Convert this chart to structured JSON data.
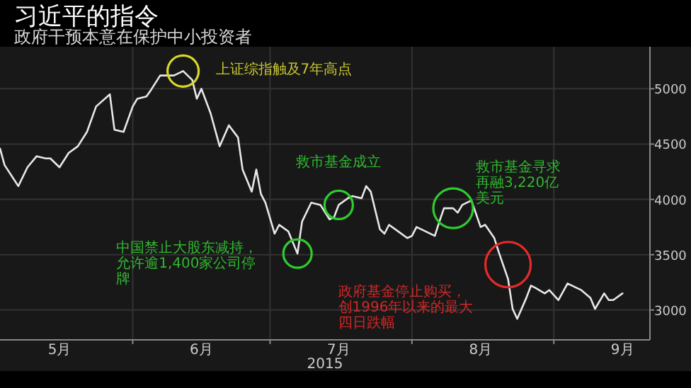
{
  "chart_data": {
    "type": "line",
    "title": "习近平的指令",
    "subtitle": "政府干预本意在保护中小投资者",
    "xlabel": "2015",
    "x": [
      "2015-05-03",
      "2015-05-04",
      "2015-05-07",
      "2015-05-09",
      "2015-05-11",
      "2015-05-13",
      "2015-05-14",
      "2015-05-16",
      "2015-05-18",
      "2015-05-20",
      "2015-05-22",
      "2015-05-24",
      "2015-05-27",
      "2015-05-28",
      "2015-05-30",
      "2015-06-01",
      "2015-06-02",
      "2015-06-04",
      "2015-06-05",
      "2015-06-07",
      "2015-06-08",
      "2015-06-10",
      "2015-06-12",
      "2015-06-14",
      "2015-06-15",
      "2015-06-16",
      "2015-06-18",
      "2015-06-20",
      "2015-06-22",
      "2015-06-24",
      "2015-06-25",
      "2015-06-27",
      "2015-06-28",
      "2015-06-29",
      "2015-06-30",
      "2015-07-02",
      "2015-07-03",
      "2015-07-05",
      "2015-07-07",
      "2015-07-08",
      "2015-07-10",
      "2015-07-12",
      "2015-07-14",
      "2015-07-15",
      "2015-07-16",
      "2015-07-18",
      "2015-07-19",
      "2015-07-21",
      "2015-07-22",
      "2015-07-23",
      "2015-07-25",
      "2015-07-26",
      "2015-07-27",
      "2015-07-29",
      "2015-07-31",
      "2015-08-01",
      "2015-08-02",
      "2015-08-04",
      "2015-08-06",
      "2015-08-07",
      "2015-08-08",
      "2015-08-10",
      "2015-08-11",
      "2015-08-12",
      "2015-08-14",
      "2015-08-16",
      "2015-08-17",
      "2015-08-19",
      "2015-08-20",
      "2015-08-22",
      "2015-08-23",
      "2015-08-24",
      "2015-08-26",
      "2015-08-27",
      "2015-08-28",
      "2015-08-30",
      "2015-08-31",
      "2015-09-02",
      "2015-09-04",
      "2015-09-06",
      "2015-09-07",
      "2015-09-09",
      "2015-09-10",
      "2015-09-12",
      "2015-09-13",
      "2015-09-14",
      "2015-09-16"
    ],
    "series": [
      {
        "color": "#e8e8e8",
        "values": [
          4460,
          4310,
          4120,
          4290,
          4390,
          4370,
          4370,
          4290,
          4420,
          4480,
          4610,
          4840,
          4950,
          4630,
          4610,
          4840,
          4910,
          4930,
          4990,
          5120,
          5120,
          5120,
          5160,
          5080,
          4910,
          5000,
          4780,
          4480,
          4670,
          4560,
          4270,
          4070,
          4270,
          4050,
          3970,
          3690,
          3770,
          3710,
          3510,
          3800,
          3970,
          3950,
          3820,
          3840,
          3950,
          4010,
          4030,
          4010,
          4120,
          4070,
          3730,
          3690,
          3770,
          3710,
          3650,
          3670,
          3750,
          3710,
          3670,
          3800,
          3920,
          3920,
          3880,
          3950,
          3990,
          3750,
          3770,
          3650,
          3520,
          3280,
          3010,
          2920,
          3110,
          3220,
          3200,
          3150,
          3180,
          3090,
          3240,
          3200,
          3180,
          3110,
          3010,
          3150,
          3090,
          3090,
          3150
        ]
      }
    ],
    "xlim": [
      "2015-05-03",
      "2015-09-22"
    ],
    "ylim": [
      2730,
      5380
    ],
    "xticks": [
      {
        "value": "2015-05-16",
        "label": "5月"
      },
      {
        "value": "2015-06-01",
        "label": null
      },
      {
        "value": "2015-06-16",
        "label": "6月"
      },
      {
        "value": "2015-07-01",
        "label": null
      },
      {
        "value": "2015-07-16",
        "label": "7月"
      },
      {
        "value": "2015-08-01",
        "label": null
      },
      {
        "value": "2015-08-16",
        "label": "8月"
      },
      {
        "value": "2015-09-01",
        "label": null
      },
      {
        "value": "2015-09-16",
        "label": "9月"
      }
    ],
    "yticks": [
      3000,
      3500,
      4000,
      4500,
      5000
    ],
    "grid": true,
    "annotations": [
      {
        "text": "上证综指触及7年高点",
        "x": "2015-06-12",
        "y": 5160
      },
      {
        "text": "中国禁止大股东减持，允许逾1,400家公司停牌",
        "x": "2015-07-07",
        "y": 3510
      },
      {
        "text": "救市基金成立",
        "x": "2015-07-16",
        "y": 3950
      },
      {
        "text": "救市基金寻求再融3,220亿美元",
        "x": "2015-08-10",
        "y": 3920
      },
      {
        "text": "政府基金停止购买，创1996年以来的最大四日跌幅",
        "x": "2015-08-22",
        "y": 3410
      }
    ]
  }
}
